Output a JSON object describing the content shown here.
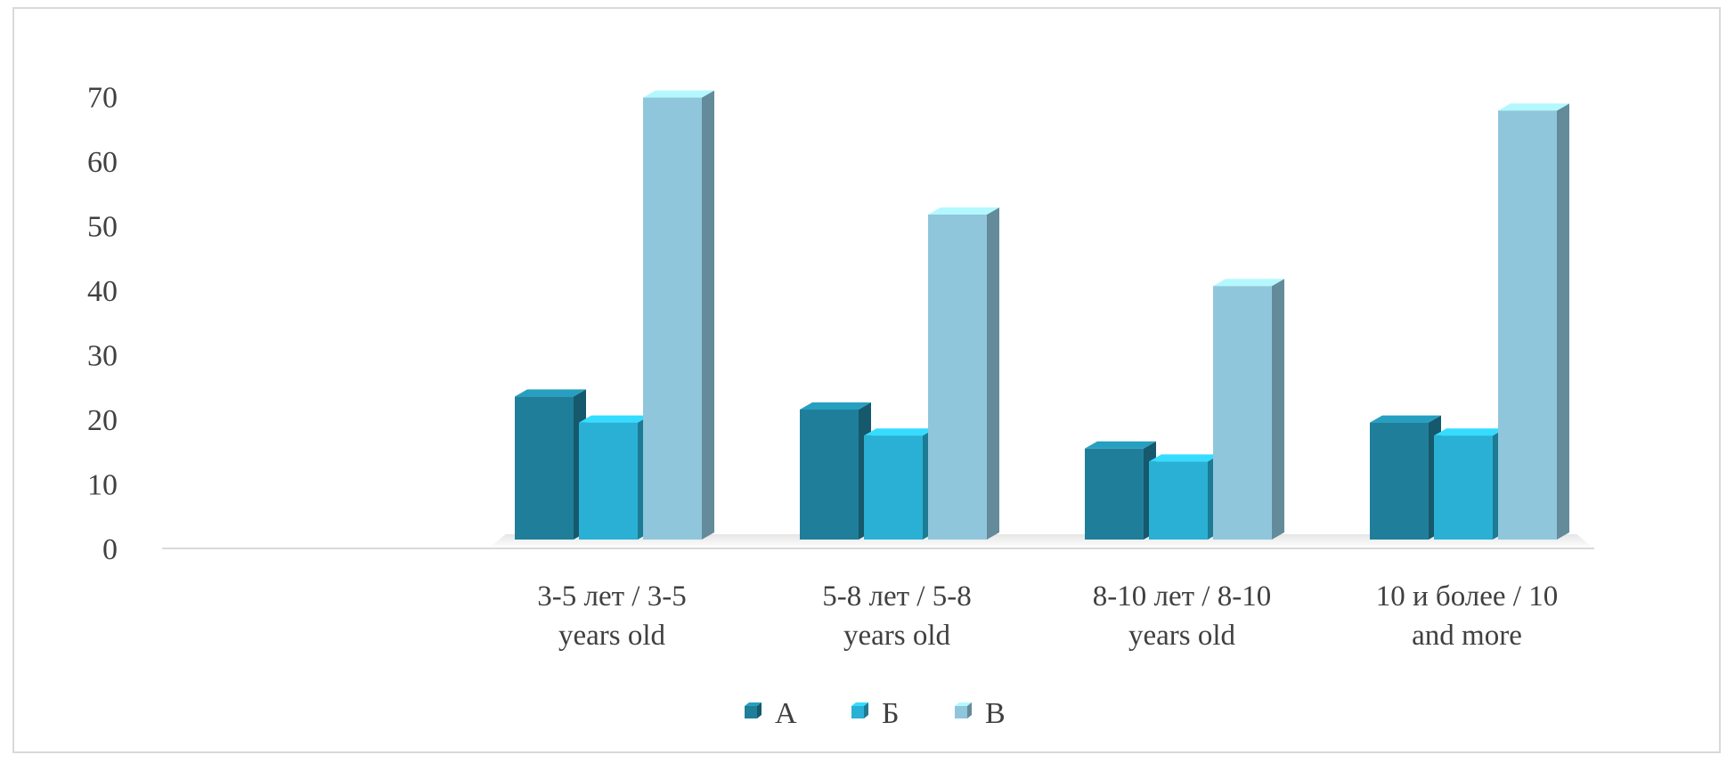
{
  "chart_data": {
    "type": "bar",
    "title": "",
    "xlabel": "",
    "ylabel": "",
    "ylim": [
      0,
      70
    ],
    "yticks": [
      0,
      10,
      20,
      30,
      40,
      50,
      60,
      70
    ],
    "grid": false,
    "style": "3d-clustered-column",
    "legend_position": "bottom",
    "categories": [
      [
        "3-5 лет / 3-5",
        "years old"
      ],
      [
        "5-8 лет / 5-8",
        "years old"
      ],
      [
        "8-10 лет / 8-10",
        "years old"
      ],
      [
        "10 и более / 10",
        "and more"
      ]
    ],
    "series": [
      {
        "name": "А",
        "color": "#1f7f9a",
        "values": [
          22,
          20,
          14,
          18
        ]
      },
      {
        "name": "Б",
        "color": "#2ab0d4",
        "values": [
          18,
          16,
          12,
          16
        ]
      },
      {
        "name": "В",
        "color": "#8fc6dc",
        "values": [
          68,
          50,
          39,
          66
        ]
      }
    ]
  }
}
